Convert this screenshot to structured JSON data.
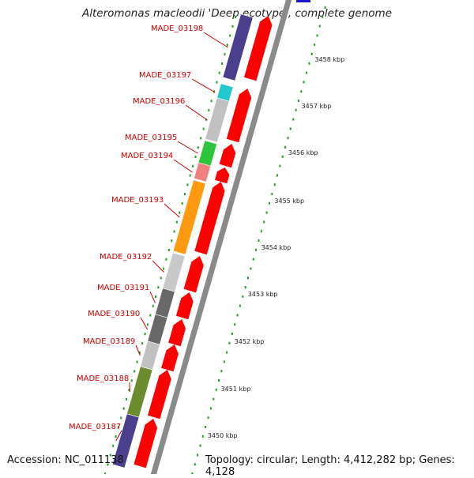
{
  "title": "Alteromonas macleodii 'Deep ecotype', complete genome",
  "footer": {
    "accession": "Accession: NC_011138",
    "topology": "Topology: circular; Length: 4,412,282 bp; Genes: 4,128"
  },
  "scale_ticks": [
    "3458 kbp",
    "3457 kbp",
    "3456 kbp",
    "3455 kbp",
    "3454 kbp",
    "3453 kbp",
    "3452 kbp",
    "3451 kbp",
    "3450 kbp"
  ],
  "genes": [
    {
      "label": "MADE_03198",
      "color": "#4a3f8c"
    },
    {
      "label": "MADE_03197",
      "color": "#22c8cc"
    },
    {
      "label": "MADE_03196",
      "color": "#c0c0c0"
    },
    {
      "label": "MADE_03195",
      "color": "#2ec43a"
    },
    {
      "label": "MADE_03194",
      "color": "#f08080"
    },
    {
      "label": "MADE_03193",
      "color": "#ff9a10"
    },
    {
      "label": "MADE_03192",
      "color": "#c8c8c8"
    },
    {
      "label": "MADE_03191",
      "color": "#686868"
    },
    {
      "label": "MADE_03190",
      "color": "#686868"
    },
    {
      "label": "MADE_03189",
      "color": "#c0c0c0"
    },
    {
      "label": "MADE_03188",
      "color": "#6b8c2e"
    },
    {
      "label": "MADE_03187",
      "color": "#4a3f8c"
    }
  ],
  "colors": {
    "arrow": "#ff0000",
    "label": "#cc0000",
    "tick": "#22a022",
    "backbone": "#8a8a8a"
  }
}
